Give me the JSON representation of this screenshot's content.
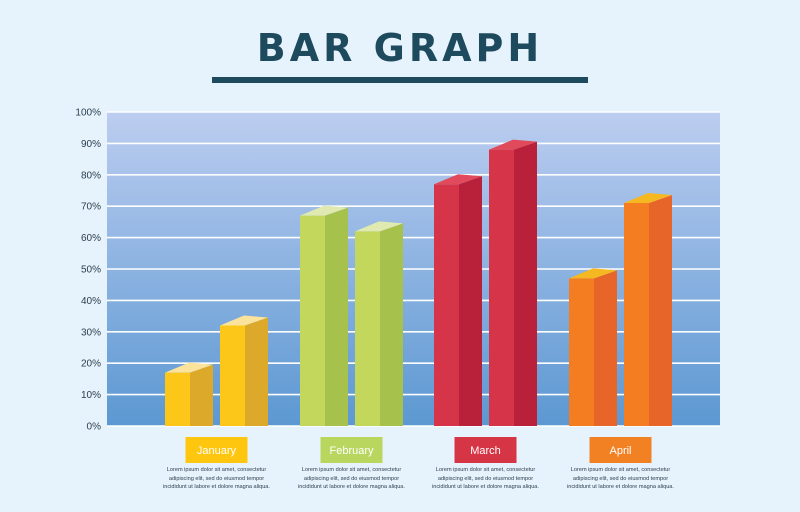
{
  "title": "BAR GRAPH",
  "chart_data": {
    "type": "bar",
    "categories": [
      "January",
      "February",
      "March",
      "April"
    ],
    "series": [
      {
        "values": [
          17,
          67,
          77,
          47
        ]
      },
      {
        "values": [
          32,
          62,
          88,
          71
        ]
      }
    ],
    "category_colors": [
      {
        "front": "#fdc71a",
        "side": "#dca92b",
        "top": "#fbe39b"
      },
      {
        "front": "#c2d75c",
        "side": "#a7c24c",
        "top": "#dfe9b0"
      },
      {
        "front": "#d63448",
        "side": "#b9203a",
        "top": "#e04a5a"
      },
      {
        "front": "#f47d22",
        "side": "#e8652a",
        "top": "#f6b820"
      }
    ],
    "label_colors": [
      "#ffc60f",
      "#b9d65f",
      "#d63545",
      "#f28124"
    ],
    "y_ticks": [
      "0%",
      "10%",
      "20%",
      "30%",
      "40%",
      "50%",
      "60%",
      "70%",
      "80%",
      "90%",
      "100%"
    ],
    "ylim": [
      0,
      100
    ],
    "grid": true
  },
  "captions": [
    "Lorem ipsum dolor sit amet, consectetur adipiscing elit, sed do eiusmod tempor incididunt ut labore et dolore magna aliqua.",
    "Lorem ipsum dolor sit amet, consectetur adipiscing elit, sed do eiusmod tempor incididunt ut labore et dolore magna aliqua.",
    "Lorem ipsum dolor sit amet, consectetur adipiscing elit, sed do eiusmod tempor incididunt ut labore et dolore magna aliqua.",
    "Lorem ipsum dolor sit amet, consectetur adipiscing elit, sed do eiusmod tempor incididunt ut labore et dolore magna aliqua."
  ]
}
